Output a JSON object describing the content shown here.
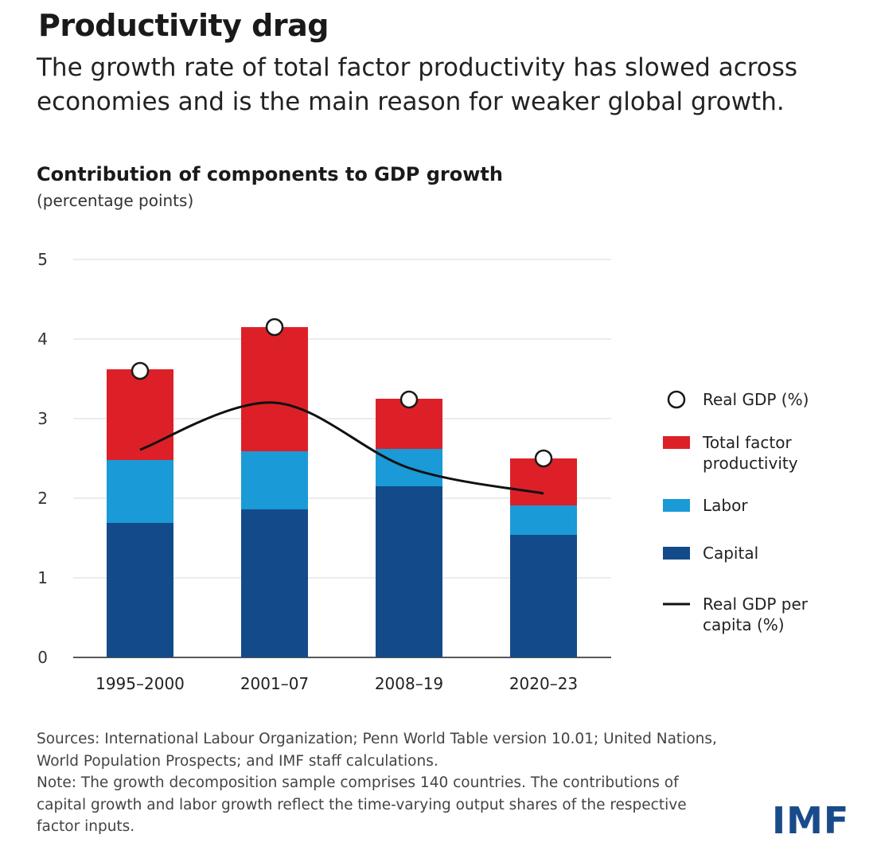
{
  "header": {
    "title": "Productivity drag",
    "subtitle": "The growth rate of total factor productivity has slowed across economies and is the main reason for weaker global growth."
  },
  "chart_data": {
    "type": "bar",
    "stacked": true,
    "title": "Contribution of components to GDP growth",
    "subtitle": "(percentage points)",
    "categories": [
      "1995–2000",
      "2001–07",
      "2008–19",
      "2020–23"
    ],
    "ylim": [
      0,
      5
    ],
    "yticks": [
      "0",
      "1",
      "2",
      "3",
      "4",
      "5"
    ],
    "grid": true,
    "legend_position": "right",
    "series": [
      {
        "name": "Capital",
        "kind": "bar",
        "color": "#134b8a",
        "values": [
          1.69,
          1.86,
          2.15,
          1.54
        ]
      },
      {
        "name": "Labor",
        "kind": "bar",
        "color": "#1a9ad6",
        "values": [
          0.79,
          0.73,
          0.47,
          0.37
        ]
      },
      {
        "name": "Total factor productivity",
        "kind": "bar",
        "color": "#dd2027",
        "values": [
          1.14,
          1.56,
          0.63,
          0.59
        ]
      },
      {
        "name": "Real GDP (%)",
        "kind": "marker",
        "color": "#1a1a1a",
        "values": [
          3.6,
          4.15,
          3.24,
          2.5
        ]
      },
      {
        "name": "Real GDP per capita (%)",
        "kind": "line",
        "color": "#111111",
        "values": [
          2.61,
          3.2,
          2.38,
          2.06
        ]
      }
    ],
    "legend": [
      {
        "key": "gdp",
        "lines": [
          "Real GDP (%)"
        ]
      },
      {
        "key": "tfp",
        "lines": [
          "Total factor",
          "productivity"
        ]
      },
      {
        "key": "labor",
        "lines": [
          "Labor"
        ]
      },
      {
        "key": "capital",
        "lines": [
          "Capital"
        ]
      },
      {
        "key": "percap",
        "lines": [
          "Real GDP per",
          "capita (%)"
        ]
      }
    ]
  },
  "footer": {
    "sources": "Sources: International Labour Organization; Penn World Table version 10.01; United Nations, World Population Prospects; and IMF staff calculations.",
    "note": "Note: The growth decomposition sample comprises 140 countries. The contributions of capital growth and labor growth reflect the time-varying output shares of the respective factor inputs.",
    "logo": "IMF"
  }
}
